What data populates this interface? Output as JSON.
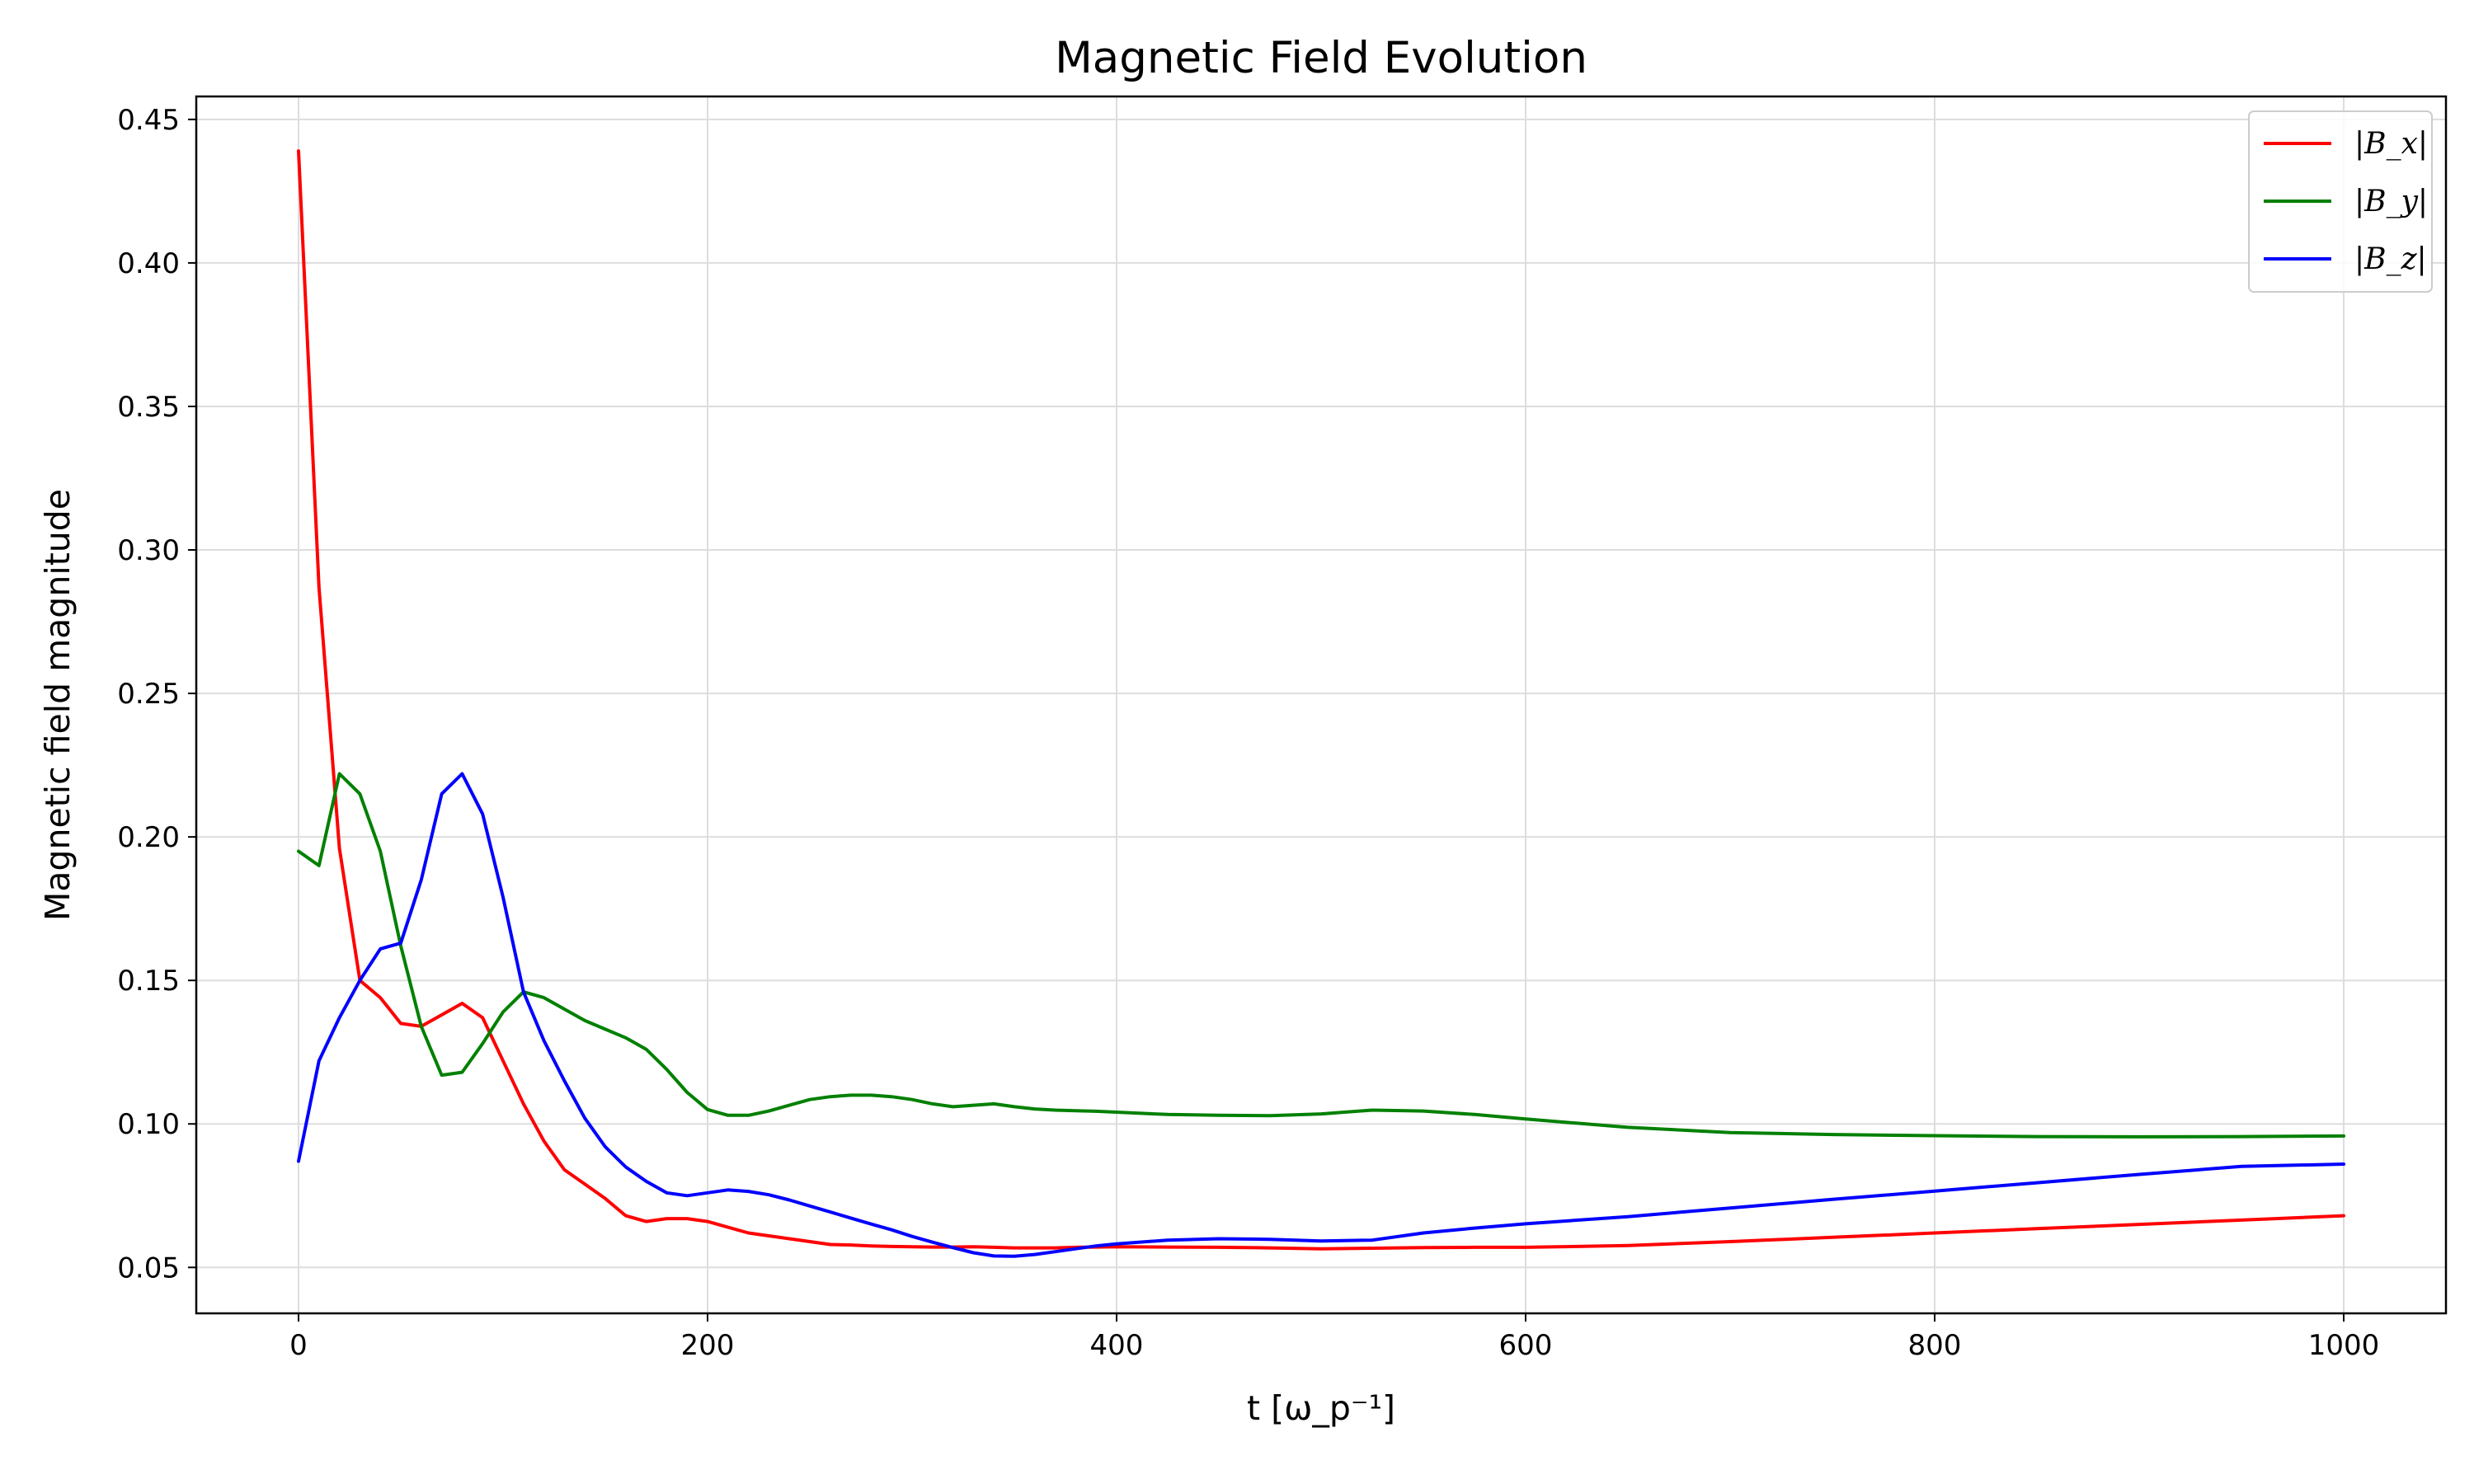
{
  "chart_data": {
    "type": "line",
    "title": "Magnetic Field Evolution",
    "xlabel": "t [ω_p⁻¹]",
    "ylabel": "Magnetic field magnitude",
    "xlim": [
      -50,
      1050
    ],
    "ylim": [
      0.034,
      0.458
    ],
    "xticks": [
      0,
      200,
      400,
      600,
      800,
      1000
    ],
    "yticks": [
      0.05,
      0.1,
      0.15,
      0.2,
      0.25,
      0.3,
      0.35,
      0.4,
      0.45
    ],
    "grid": true,
    "legend_position": "top-right",
    "x": [
      0,
      10,
      20,
      30,
      40,
      50,
      60,
      70,
      80,
      90,
      100,
      110,
      120,
      130,
      140,
      150,
      160,
      170,
      180,
      190,
      200,
      210,
      220,
      230,
      240,
      250,
      260,
      270,
      280,
      290,
      300,
      310,
      320,
      330,
      340,
      350,
      360,
      370,
      380,
      390,
      400,
      425,
      450,
      475,
      500,
      525,
      550,
      575,
      600,
      650,
      700,
      750,
      800,
      850,
      900,
      950,
      1000
    ],
    "series": [
      {
        "name": "|B_x|",
        "color": "#ff0000",
        "values": [
          0.439,
          0.287,
          0.196,
          0.15,
          0.144,
          0.135,
          0.134,
          0.138,
          0.142,
          0.137,
          0.122,
          0.107,
          0.094,
          0.084,
          0.079,
          0.074,
          0.068,
          0.066,
          0.067,
          0.067,
          0.066,
          0.064,
          0.062,
          0.061,
          0.06,
          0.059,
          0.058,
          0.0578,
          0.0575,
          0.0573,
          0.0572,
          0.0571,
          0.0571,
          0.0572,
          0.057,
          0.0568,
          0.0568,
          0.0568,
          0.057,
          0.0571,
          0.0572,
          0.0571,
          0.057,
          0.0568,
          0.0565,
          0.0567,
          0.0569,
          0.057,
          0.057,
          0.0576,
          0.059,
          0.0605,
          0.062,
          0.0635,
          0.065,
          0.0665,
          0.068
        ]
      },
      {
        "name": "|B_y|",
        "color": "#008000",
        "values": [
          0.195,
          0.19,
          0.222,
          0.215,
          0.195,
          0.162,
          0.134,
          0.117,
          0.118,
          0.128,
          0.139,
          0.146,
          0.144,
          0.14,
          0.136,
          0.133,
          0.13,
          0.126,
          0.119,
          0.111,
          0.105,
          0.103,
          0.103,
          0.1045,
          0.1065,
          0.1085,
          0.1095,
          0.11,
          0.11,
          0.1095,
          0.1085,
          0.107,
          0.106,
          0.1065,
          0.107,
          0.106,
          0.1052,
          0.1048,
          0.1046,
          0.1044,
          0.1041,
          0.1033,
          0.103,
          0.1029,
          0.1035,
          0.1048,
          0.1045,
          0.1033,
          0.1017,
          0.0988,
          0.097,
          0.0963,
          0.0959,
          0.0956,
          0.0955,
          0.0956,
          0.0958
        ]
      },
      {
        "name": "|B_z|",
        "color": "#0000ff",
        "values": [
          0.087,
          0.122,
          0.137,
          0.15,
          0.161,
          0.163,
          0.185,
          0.215,
          0.222,
          0.208,
          0.179,
          0.146,
          0.129,
          0.115,
          0.102,
          0.092,
          0.085,
          0.08,
          0.076,
          0.075,
          0.076,
          0.077,
          0.0765,
          0.0753,
          0.0735,
          0.0714,
          0.0693,
          0.0672,
          0.0651,
          0.0631,
          0.0608,
          0.0588,
          0.0569,
          0.0551,
          0.054,
          0.0539,
          0.0545,
          0.0555,
          0.0565,
          0.0575,
          0.0582,
          0.0595,
          0.06,
          0.0598,
          0.0592,
          0.0595,
          0.062,
          0.0637,
          0.0652,
          0.0677,
          0.0707,
          0.0737,
          0.0766,
          0.0795,
          0.0824,
          0.0852,
          0.086
        ]
      }
    ]
  }
}
